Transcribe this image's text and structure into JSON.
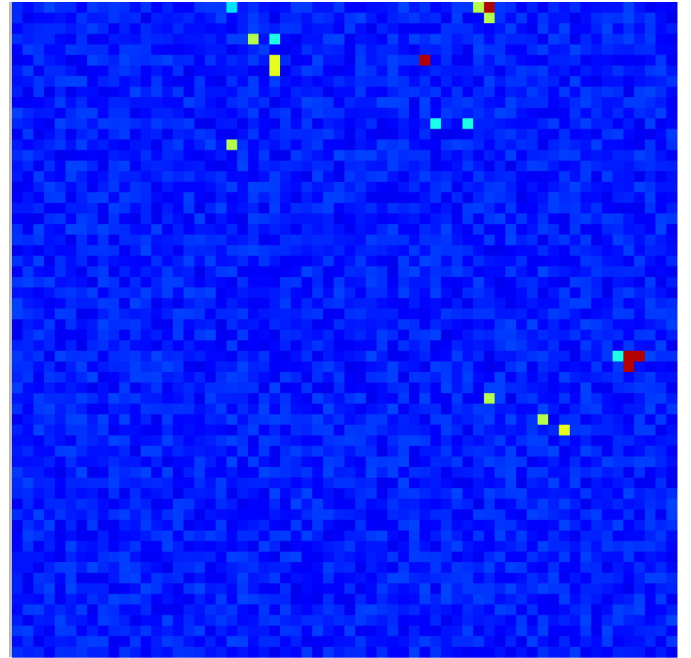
{
  "chart_data": {
    "type": "heatmap",
    "title": "",
    "xlabel": "",
    "ylabel": "",
    "grid": false,
    "legend": "none",
    "rows": 62,
    "cols": 62,
    "colormap": "jet",
    "value_range": [
      0,
      1
    ],
    "background_level": 0.15,
    "hotspots": [
      {
        "row": 0,
        "col": 20,
        "value": 0.35
      },
      {
        "row": 0,
        "col": 43,
        "value": 0.55
      },
      {
        "row": 0,
        "col": 44,
        "value": 0.95
      },
      {
        "row": 1,
        "col": 44,
        "value": 0.55
      },
      {
        "row": 3,
        "col": 22,
        "value": 0.55
      },
      {
        "row": 3,
        "col": 24,
        "value": 0.4
      },
      {
        "row": 5,
        "col": 24,
        "value": 0.6
      },
      {
        "row": 6,
        "col": 24,
        "value": 0.6
      },
      {
        "row": 5,
        "col": 38,
        "value": 0.95
      },
      {
        "row": 11,
        "col": 39,
        "value": 0.4
      },
      {
        "row": 11,
        "col": 42,
        "value": 0.4
      },
      {
        "row": 13,
        "col": 20,
        "value": 0.55
      },
      {
        "row": 33,
        "col": 56,
        "value": 0.4
      },
      {
        "row": 33,
        "col": 57,
        "value": 0.95
      },
      {
        "row": 33,
        "col": 58,
        "value": 0.95
      },
      {
        "row": 34,
        "col": 57,
        "value": 0.95
      },
      {
        "row": 37,
        "col": 44,
        "value": 0.55
      },
      {
        "row": 39,
        "col": 49,
        "value": 0.55
      },
      {
        "row": 40,
        "col": 51,
        "value": 0.6
      }
    ]
  }
}
